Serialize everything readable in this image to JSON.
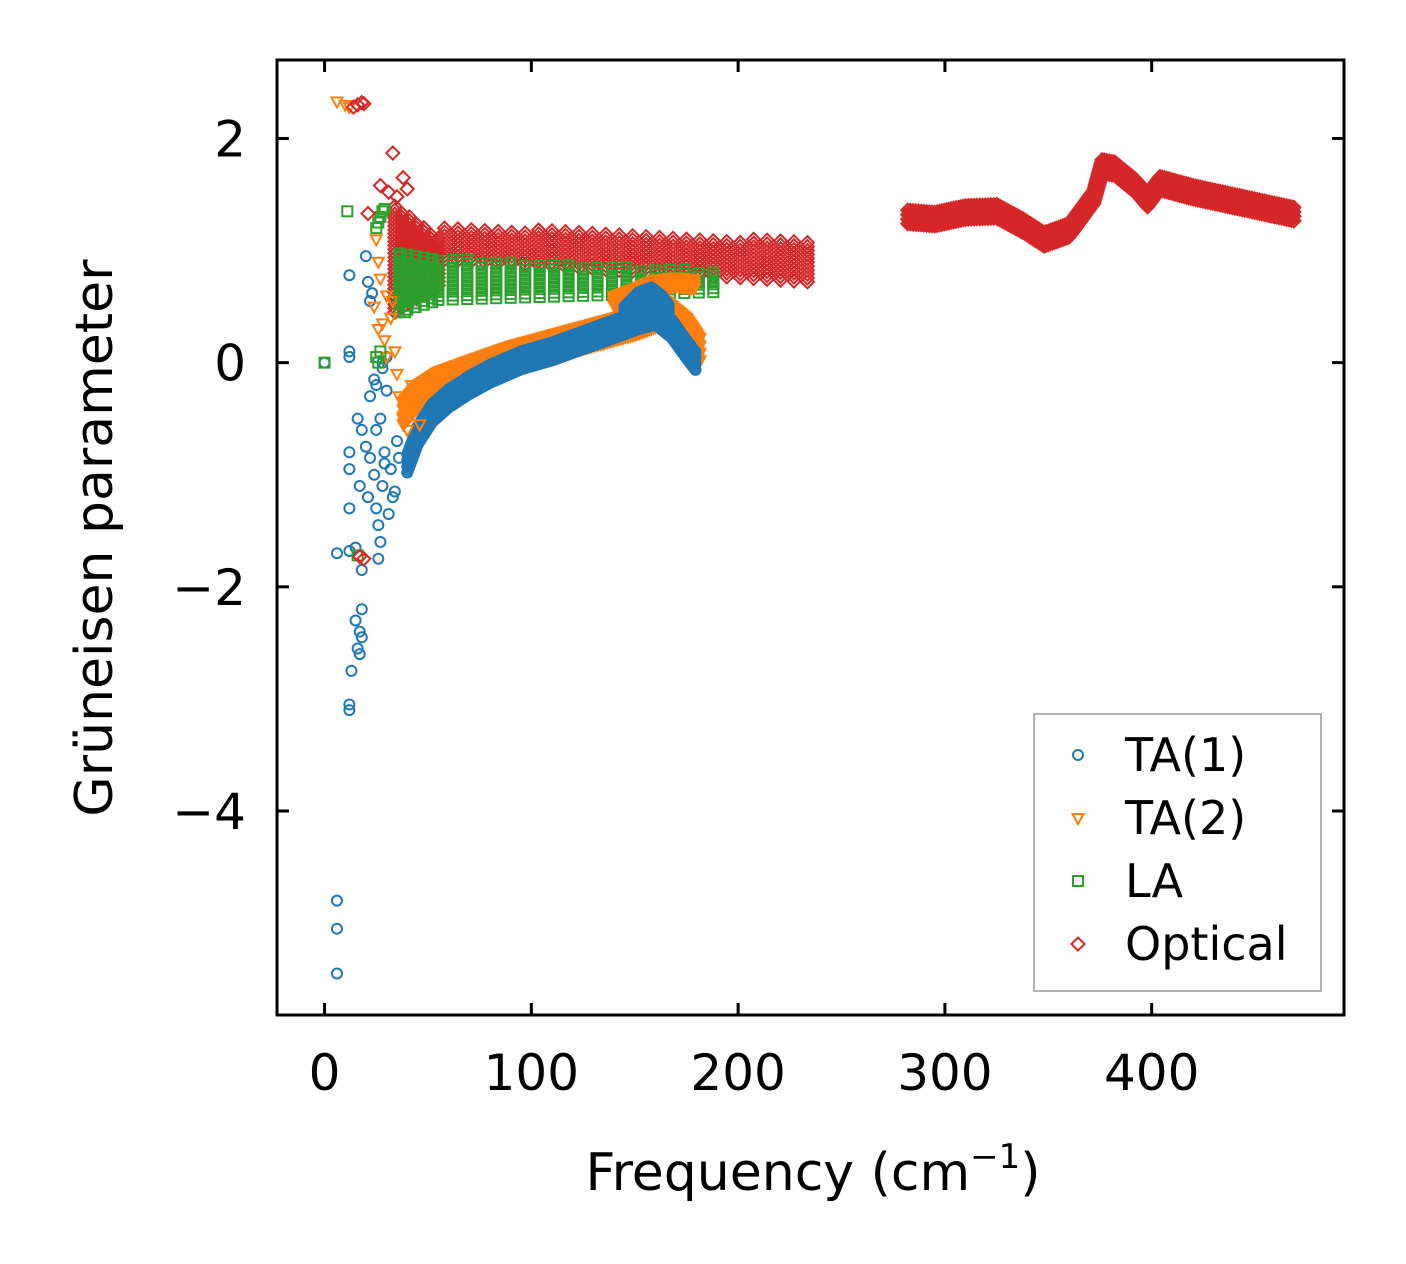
{
  "chart_data": {
    "type": "scatter",
    "title": "",
    "xlabel": "Frequency (cm",
    "xlabel_sup": "−1",
    "xlabel_end": ")",
    "ylabel": "Grüneisen parameter",
    "xlim": [
      -23,
      493
    ],
    "ylim": [
      -5.82,
      2.7
    ],
    "xticks": [
      0,
      100,
      200,
      300,
      400
    ],
    "xtick_labels": [
      "0",
      "100",
      "200",
      "300",
      "400"
    ],
    "yticks": [
      2,
      0,
      -2,
      -4
    ],
    "ytick_labels": [
      "2",
      "0",
      "−2",
      "−4"
    ],
    "grid": false,
    "legend_position": "bottom-right",
    "series": [
      {
        "name": "TA(1)",
        "marker": "circle",
        "color": "#1f77b4",
        "points": [
          [
            0,
            0
          ],
          [
            6,
            -5.45
          ],
          [
            6,
            -5.05
          ],
          [
            6,
            -4.8
          ],
          [
            6,
            -1.7
          ],
          [
            12,
            -1.68
          ],
          [
            12,
            -3.05
          ],
          [
            12,
            -3.1
          ],
          [
            13,
            -2.75
          ],
          [
            15,
            -2.3
          ],
          [
            16,
            -2.55
          ],
          [
            17,
            -2.6
          ],
          [
            17,
            -2.4
          ],
          [
            18,
            -2.45
          ],
          [
            18,
            -2.2
          ],
          [
            12,
            -0.8
          ],
          [
            12,
            -0.95
          ],
          [
            12,
            -1.3
          ],
          [
            15,
            -1.65
          ],
          [
            17,
            -1.1
          ],
          [
            18,
            -1.85
          ],
          [
            18,
            -0.6
          ],
          [
            20,
            -0.75
          ],
          [
            21,
            -1.2
          ],
          [
            22,
            -0.85
          ],
          [
            24,
            -1.0
          ],
          [
            25,
            -1.3
          ],
          [
            26,
            -1.45
          ],
          [
            26,
            -1.75
          ],
          [
            27,
            -1.6
          ],
          [
            28,
            -1.1
          ],
          [
            29,
            -0.8
          ],
          [
            31,
            -1.35
          ],
          [
            32,
            -0.95
          ],
          [
            33,
            -1.2
          ],
          [
            34,
            -1.15
          ],
          [
            35,
            -0.7
          ],
          [
            36,
            -0.85
          ],
          [
            12,
            0.05
          ],
          [
            12,
            0.1
          ],
          [
            12,
            0.78
          ],
          [
            20,
            0.95
          ],
          [
            21,
            0.72
          ],
          [
            22,
            0.55
          ],
          [
            23,
            0.62
          ],
          [
            24,
            -0.15
          ],
          [
            25,
            -0.2
          ],
          [
            27,
            -0.5
          ],
          [
            28,
            -0.05
          ],
          [
            28,
            0.0
          ],
          [
            30,
            0.05
          ],
          [
            30,
            -0.25
          ],
          [
            16,
            -0.5
          ],
          [
            22,
            -0.3
          ],
          [
            25,
            -0.6
          ],
          [
            29,
            -0.9
          ]
        ]
      },
      {
        "name": "TA(2)",
        "marker": "triangle-down",
        "color": "#ff7f0e",
        "points": [
          [
            6,
            2.33
          ],
          [
            10,
            2.3
          ],
          [
            12,
            2.28
          ],
          [
            25,
            1.1
          ],
          [
            26,
            0.9
          ],
          [
            24,
            0.5
          ],
          [
            26,
            0.3
          ],
          [
            27,
            0.75
          ],
          [
            29,
            0.2
          ],
          [
            30,
            0.6
          ],
          [
            32,
            0.4
          ],
          [
            33,
            0.55
          ],
          [
            34,
            0.1
          ],
          [
            35,
            -0.1
          ],
          [
            36,
            -0.3
          ],
          [
            38,
            -0.5
          ],
          [
            40,
            -0.6
          ],
          [
            42,
            -0.2
          ],
          [
            44,
            -0.4
          ],
          [
            46,
            -0.55
          ],
          [
            30,
            0.05
          ],
          [
            28,
            0.35
          ]
        ]
      },
      {
        "name": "LA",
        "marker": "square",
        "color": "#2ca02c",
        "points": [
          [
            0,
            0
          ],
          [
            11,
            1.35
          ],
          [
            16,
            -1.72
          ],
          [
            25,
            1.2
          ],
          [
            26,
            1.25
          ],
          [
            27,
            1.3
          ],
          [
            28,
            1.35
          ],
          [
            29,
            1.37
          ],
          [
            25,
            0.05
          ],
          [
            26,
            0.0
          ],
          [
            27,
            0.1
          ],
          [
            37,
            0.95
          ],
          [
            38,
            0.6
          ],
          [
            39,
            0.45
          ]
        ]
      },
      {
        "name": "Optical",
        "marker": "diamond",
        "color": "#d62728",
        "points": [
          [
            14,
            2.28
          ],
          [
            16,
            2.3
          ],
          [
            18,
            2.32
          ],
          [
            19,
            2.31
          ],
          [
            33,
            1.87
          ],
          [
            27,
            1.58
          ],
          [
            31,
            1.52
          ],
          [
            35,
            1.48
          ],
          [
            38,
            1.65
          ],
          [
            40,
            1.55
          ],
          [
            21,
            1.33
          ],
          [
            17,
            -1.73
          ],
          [
            19,
            -1.75
          ]
        ]
      }
    ],
    "dense_bands": [
      {
        "series": "Optical",
        "kind": "columns",
        "x_start": 58,
        "x_end": 234,
        "step": 6.5,
        "y_lo_start": 0.92,
        "y_lo_end": 0.72,
        "y_hi_start": 1.22,
        "y_hi_end": 1.08
      },
      {
        "series": "Optical",
        "kind": "columns",
        "x_start": 34,
        "x_end": 56,
        "step": 3.5,
        "y_lo_start": 0.45,
        "y_lo_end": 0.7,
        "y_hi_start": 1.4,
        "y_hi_end": 1.1
      },
      {
        "series": "Optical",
        "kind": "curve",
        "x": [
          282,
          295,
          310,
          325,
          338,
          348,
          360,
          372,
          376,
          382,
          392,
          398,
          404,
          420,
          445,
          470
        ],
        "y": [
          1.3,
          1.28,
          1.34,
          1.35,
          1.22,
          1.1,
          1.18,
          1.48,
          1.75,
          1.73,
          1.58,
          1.45,
          1.6,
          1.52,
          1.42,
          1.32
        ],
        "spread": 0.12
      },
      {
        "series": "LA",
        "kind": "columns",
        "x_start": 55,
        "x_end": 190,
        "step": 7,
        "y_lo_start": 0.56,
        "y_lo_end": 0.63,
        "y_hi_start": 0.93,
        "y_hi_end": 0.82
      },
      {
        "series": "LA",
        "kind": "columns",
        "x_start": 36,
        "x_end": 54,
        "step": 4,
        "y_lo_start": 0.45,
        "y_lo_end": 0.55,
        "y_hi_start": 1.0,
        "y_hi_end": 0.95
      },
      {
        "series": "TA(2)",
        "kind": "curve",
        "x": [
          38,
          45,
          55,
          70,
          90,
          110,
          130,
          150,
          165,
          175,
          182
        ],
        "y": [
          -0.45,
          -0.3,
          -0.18,
          -0.08,
          0.05,
          0.15,
          0.25,
          0.35,
          0.45,
          0.3,
          0.1
        ],
        "spread": 0.2
      },
      {
        "series": "TA(2)",
        "kind": "curve",
        "x": [
          140,
          150,
          160,
          170,
          180
        ],
        "y": [
          0.55,
          0.62,
          0.7,
          0.72,
          0.7
        ],
        "spread": 0.08
      },
      {
        "series": "TA(1)",
        "kind": "curve",
        "x": [
          40,
          45,
          52,
          60,
          70,
          80,
          95,
          110,
          125,
          140,
          152,
          160,
          168,
          175,
          180
        ],
        "y": [
          -0.9,
          -0.65,
          -0.45,
          -0.32,
          -0.2,
          -0.1,
          0.02,
          0.1,
          0.2,
          0.3,
          0.38,
          0.42,
          0.3,
          0.12,
          0.0
        ],
        "spread": 0.16
      },
      {
        "series": "TA(1)",
        "kind": "curve",
        "x": [
          145,
          152,
          158,
          163,
          167
        ],
        "y": [
          0.45,
          0.58,
          0.62,
          0.55,
          0.45
        ],
        "spread": 0.1
      }
    ]
  }
}
